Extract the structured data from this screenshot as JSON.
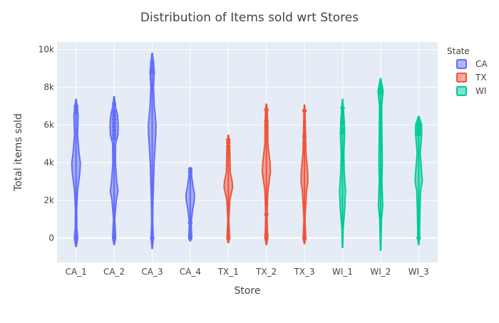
{
  "chart_data": {
    "type": "violin",
    "title": "Distribution of Items sold wrt Stores",
    "xlabel": "Store",
    "ylabel": "Total items sold",
    "categories": [
      "CA_1",
      "CA_2",
      "CA_3",
      "CA_4",
      "TX_1",
      "TX_2",
      "TX_3",
      "WI_1",
      "WI_2",
      "WI_3"
    ],
    "ylim": [
      -1300,
      10400
    ],
    "yticks": [
      0,
      2000,
      4000,
      6000,
      8000,
      10000
    ],
    "ytick_labels": [
      "0",
      "2k",
      "4k",
      "6k",
      "8k",
      "10k"
    ],
    "legend_title": "State",
    "legend_position": "right",
    "series": [
      {
        "name": "CA",
        "color": "#636efa",
        "stores": [
          {
            "store": "CA_1",
            "range": [
              -450,
              7350
            ],
            "profile": [
              [
                -450,
                0.05
              ],
              [
                0,
                0.4
              ],
              [
                500,
                0.2
              ],
              [
                1500,
                0.15
              ],
              [
                2500,
                0.35
              ],
              [
                3500,
                0.9
              ],
              [
                4000,
                1.0
              ],
              [
                4500,
                0.7
              ],
              [
                5500,
                0.35
              ],
              [
                6500,
                0.5
              ],
              [
                7000,
                0.25
              ],
              [
                7350,
                0.05
              ]
            ],
            "outliers": [
              0,
              6650,
              6750,
              6850,
              6950,
              7000
            ]
          },
          {
            "store": "CA_2",
            "range": [
              -350,
              7500
            ],
            "profile": [
              [
                -350,
                0.05
              ],
              [
                0,
                0.35
              ],
              [
                1000,
                0.15
              ],
              [
                2000,
                0.5
              ],
              [
                2500,
                0.9
              ],
              [
                3000,
                0.6
              ],
              [
                4000,
                0.3
              ],
              [
                5000,
                0.35
              ],
              [
                5500,
                0.9
              ],
              [
                6000,
                0.95
              ],
              [
                6500,
                0.8
              ],
              [
                7000,
                0.3
              ],
              [
                7500,
                0.05
              ]
            ],
            "outliers": [
              0,
              5300,
              5500,
              5700,
              5900,
              6100,
              6300,
              6500,
              6700,
              7100
            ]
          },
          {
            "store": "CA_3",
            "range": [
              -550,
              9800
            ],
            "profile": [
              [
                -550,
                0.05
              ],
              [
                0,
                0.25
              ],
              [
                1000,
                0.12
              ],
              [
                2000,
                0.2
              ],
              [
                4000,
                0.45
              ],
              [
                5500,
                0.85
              ],
              [
                6000,
                0.9
              ],
              [
                7000,
                0.5
              ],
              [
                8000,
                0.3
              ],
              [
                8800,
                0.5
              ],
              [
                9300,
                0.3
              ],
              [
                9800,
                0.05
              ]
            ],
            "outliers": [
              0,
              8800,
              8950,
              9050,
              9350
            ]
          },
          {
            "store": "CA_4",
            "range": [
              -150,
              3700
            ],
            "profile": [
              [
                -150,
                0.05
              ],
              [
                0,
                0.35
              ],
              [
                800,
                0.2
              ],
              [
                1500,
                0.55
              ],
              [
                2000,
                0.95
              ],
              [
                2300,
                1.0
              ],
              [
                2800,
                0.6
              ],
              [
                3300,
                0.3
              ],
              [
                3700,
                0.05
              ]
            ],
            "outliers": [
              0,
              800,
              3300,
              3500,
              3650
            ]
          }
        ]
      },
      {
        "name": "TX",
        "color": "#ef553b",
        "stores": [
          {
            "store": "TX_1",
            "range": [
              -250,
              5450
            ],
            "profile": [
              [
                -250,
                0.05
              ],
              [
                0,
                0.3
              ],
              [
                1000,
                0.12
              ],
              [
                2000,
                0.35
              ],
              [
                2700,
                1.0
              ],
              [
                3000,
                0.9
              ],
              [
                3500,
                0.45
              ],
              [
                4500,
                0.35
              ],
              [
                5000,
                0.25
              ],
              [
                5450,
                0.05
              ]
            ],
            "outliers": [
              0,
              4550,
              4700,
              4850,
              5050,
              5200
            ]
          },
          {
            "store": "TX_2",
            "range": [
              -350,
              7100
            ],
            "profile": [
              [
                -350,
                0.05
              ],
              [
                0,
                0.3
              ],
              [
                1200,
                0.15
              ],
              [
                2500,
                0.35
              ],
              [
                3500,
                0.95
              ],
              [
                4000,
                0.85
              ],
              [
                5000,
                0.35
              ],
              [
                6000,
                0.3
              ],
              [
                6800,
                0.2
              ],
              [
                7100,
                0.05
              ]
            ],
            "outliers": [
              0,
              150,
              1250,
              5850,
              6000,
              6200,
              6800
            ]
          },
          {
            "store": "TX_3",
            "range": [
              -300,
              7050
            ],
            "profile": [
              [
                -300,
                0.05
              ],
              [
                0,
                0.3
              ],
              [
                1000,
                0.12
              ],
              [
                2500,
                0.5
              ],
              [
                3000,
                0.8
              ],
              [
                3500,
                0.75
              ],
              [
                4500,
                0.35
              ],
              [
                5400,
                0.25
              ],
              [
                6500,
                0.15
              ],
              [
                7050,
                0.05
              ]
            ],
            "outliers": [
              0,
              5400,
              6750
            ]
          }
        ]
      },
      {
        "name": "WI",
        "color": "#00cc96",
        "stores": [
          {
            "store": "WI_1",
            "range": [
              -500,
              7350
            ],
            "profile": [
              [
                -500,
                0.05
              ],
              [
                500,
                0.15
              ],
              [
                1500,
                0.5
              ],
              [
                2500,
                0.7
              ],
              [
                3500,
                0.4
              ],
              [
                4500,
                0.3
              ],
              [
                5500,
                0.5
              ],
              [
                6200,
                0.4
              ],
              [
                7350,
                0.05
              ]
            ],
            "outliers": [
              5600,
              5750,
              6100,
              6200,
              6900
            ]
          },
          {
            "store": "WI_2",
            "range": [
              -650,
              8450
            ],
            "profile": [
              [
                -650,
                0.05
              ],
              [
                1000,
                0.2
              ],
              [
                1700,
                0.5
              ],
              [
                3000,
                0.3
              ],
              [
                4000,
                0.4
              ],
              [
                5500,
                0.3
              ],
              [
                7000,
                0.25
              ],
              [
                7800,
                0.6
              ],
              [
                8450,
                0.05
              ]
            ],
            "outliers": [
              7700,
              7800,
              7900
            ]
          },
          {
            "store": "WI_3",
            "range": [
              -350,
              6450
            ],
            "profile": [
              [
                -350,
                0.05
              ],
              [
                0,
                0.2
              ],
              [
                1500,
                0.3
              ],
              [
                2500,
                0.45
              ],
              [
                3000,
                0.85
              ],
              [
                3500,
                0.7
              ],
              [
                4500,
                0.35
              ],
              [
                5500,
                0.7
              ],
              [
                6000,
                0.7
              ],
              [
                6450,
                0.05
              ]
            ],
            "outliers": [
              0,
              5500,
              5650,
              5800,
              5950,
              6050
            ]
          }
        ]
      }
    ]
  }
}
